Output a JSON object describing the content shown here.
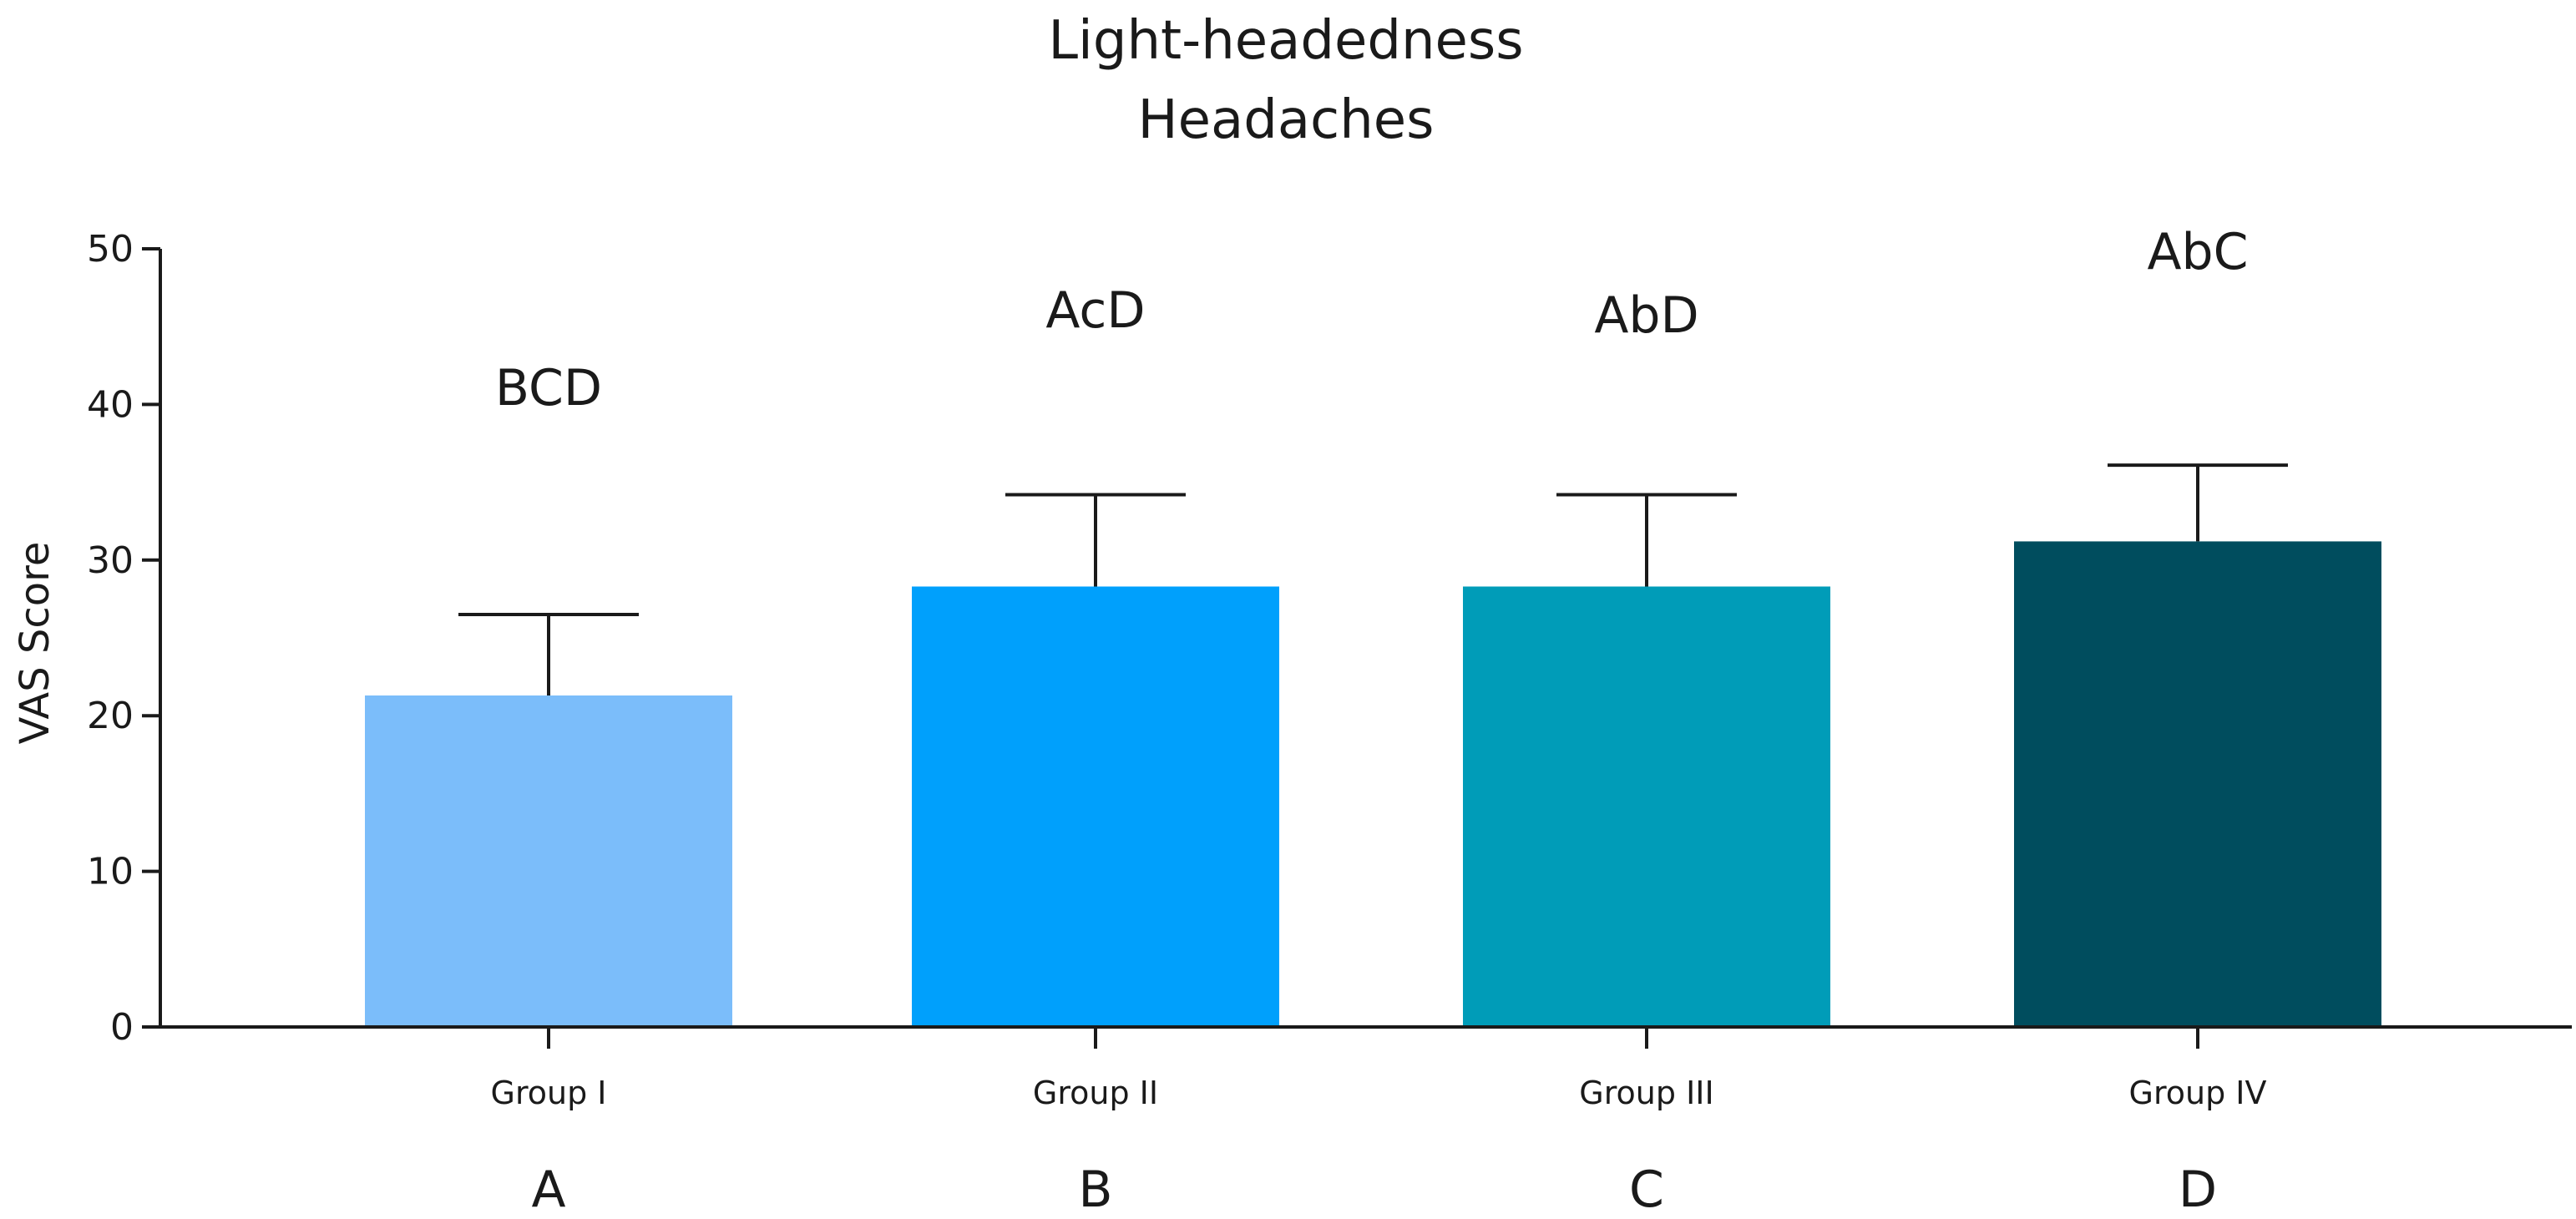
{
  "chart_data": {
    "type": "bar",
    "title": "Light-headedness",
    "subtitle": "Headaches",
    "ylabel": "VAS Score",
    "ylim": [
      0,
      50
    ],
    "yticks": [
      0,
      10,
      20,
      30,
      40,
      50
    ],
    "categories": [
      "Group I",
      "Group II",
      "Group III",
      "Group IV"
    ],
    "values": [
      21.3,
      28.3,
      28.3,
      31.2
    ],
    "error_upper": [
      26.5,
      34.2,
      34.2,
      36.1
    ],
    "significance_labels": [
      "BCD",
      "AcD",
      "AbD",
      "AbC"
    ],
    "group_letters": [
      "A",
      "B",
      "C",
      "D"
    ],
    "colors": [
      "#7bbdfa",
      "#00a0fc",
      "#009cb8",
      "#004d5e"
    ],
    "grid": false,
    "legend": "none"
  }
}
